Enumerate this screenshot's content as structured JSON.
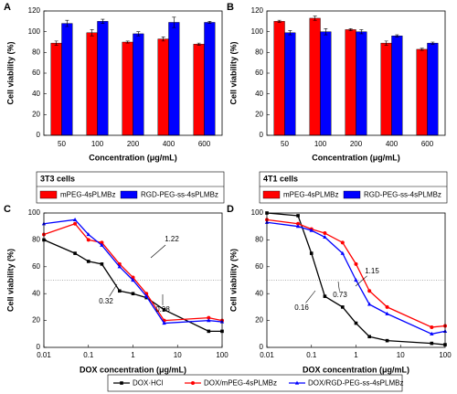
{
  "chart_data": [
    {
      "type": "bar",
      "panel": "A",
      "xlabel": "Concentration (μg/mL)",
      "ylabel": "Cell viability (%)",
      "categories": [
        "50",
        "100",
        "200",
        "400",
        "600"
      ],
      "series": [
        {
          "name": "mPEG-4sPLMBz",
          "color": "#ff0000",
          "values": [
            89,
            99,
            90,
            93,
            88
          ],
          "errors": [
            2,
            3,
            1,
            2,
            1
          ]
        },
        {
          "name": "RGD-PEG-ss-4sPLMBz",
          "color": "#0000ff",
          "values": [
            108,
            110,
            98,
            109,
            109
          ],
          "errors": [
            3,
            2,
            2,
            5,
            1
          ]
        }
      ],
      "ylim": [
        0,
        120
      ],
      "yticks": [
        0,
        20,
        40,
        60,
        80,
        100,
        120
      ],
      "legend_title": "3T3 cells"
    },
    {
      "type": "bar",
      "panel": "B",
      "xlabel": "Concentration (μg/mL)",
      "ylabel": "Cell viability (%)",
      "categories": [
        "50",
        "100",
        "200",
        "400",
        "600"
      ],
      "series": [
        {
          "name": "mPEG-4sPLMBz",
          "color": "#ff0000",
          "values": [
            110,
            113,
            102,
            89,
            83
          ],
          "errors": [
            1,
            2,
            1,
            2,
            1
          ]
        },
        {
          "name": "RGD-PEG-ss-4sPLMBz",
          "color": "#0000ff",
          "values": [
            99,
            100,
            100,
            96,
            89
          ],
          "errors": [
            2,
            3,
            2,
            1,
            1
          ]
        }
      ],
      "ylim": [
        0,
        120
      ],
      "yticks": [
        0,
        20,
        40,
        60,
        80,
        100,
        120
      ],
      "legend_title": "4T1 cells"
    },
    {
      "type": "line",
      "panel": "C",
      "xlabel": "DOX concentration (μg/mL)",
      "ylabel": "Cell viability (%)",
      "x": [
        0.01,
        0.05,
        0.1,
        0.2,
        0.5,
        1,
        2,
        5,
        50,
        100
      ],
      "log_x": true,
      "series": [
        {
          "name": "DOX·HCl",
          "color": "#000000",
          "marker": "square",
          "values": [
            80,
            70,
            64,
            62,
            42,
            40,
            37,
            28,
            12,
            12
          ]
        },
        {
          "name": "DOX/mPEG-4sPLMBz",
          "color": "#ff0000",
          "marker": "circle",
          "values": [
            84,
            92,
            80,
            78,
            62,
            52,
            40,
            20,
            22,
            20
          ]
        },
        {
          "name": "DOX/RGD-PEG-ss-4sPLMBz",
          "color": "#0000ff",
          "marker": "triangle",
          "values": [
            92,
            95,
            84,
            76,
            60,
            50,
            38,
            18,
            20,
            19
          ]
        }
      ],
      "xlim": [
        0.01,
        100
      ],
      "xticks": [
        0.01,
        0.1,
        1,
        10,
        100
      ],
      "ylim": [
        0,
        100
      ],
      "yticks": [
        0,
        20,
        40,
        60,
        80,
        100
      ],
      "hline": 50,
      "annotations": [
        "1.22",
        "0.32",
        "0.98"
      ]
    },
    {
      "type": "line",
      "panel": "D",
      "xlabel": "DOX concentration (μg/mL)",
      "ylabel": "Cell viability (%)",
      "x": [
        0.01,
        0.05,
        0.1,
        0.2,
        0.5,
        1,
        2,
        5,
        50,
        100
      ],
      "log_x": true,
      "series": [
        {
          "color": "#000000",
          "marker": "square",
          "values": [
            100,
            98,
            70,
            38,
            30,
            18,
            8,
            5,
            3,
            2
          ]
        },
        {
          "color": "#ff0000",
          "marker": "circle",
          "values": [
            95,
            92,
            88,
            85,
            78,
            62,
            42,
            30,
            15,
            16
          ]
        },
        {
          "color": "#0000ff",
          "marker": "triangle",
          "values": [
            93,
            90,
            87,
            82,
            70,
            50,
            32,
            25,
            10,
            12
          ]
        }
      ],
      "xlim": [
        0.01,
        100
      ],
      "xticks": [
        0.01,
        0.1,
        1,
        10,
        100
      ],
      "ylim": [
        0,
        100
      ],
      "yticks": [
        0,
        20,
        40,
        60,
        80,
        100
      ],
      "hline": 50,
      "annotations": [
        "1.15",
        "0.73",
        "0.16"
      ]
    }
  ]
}
